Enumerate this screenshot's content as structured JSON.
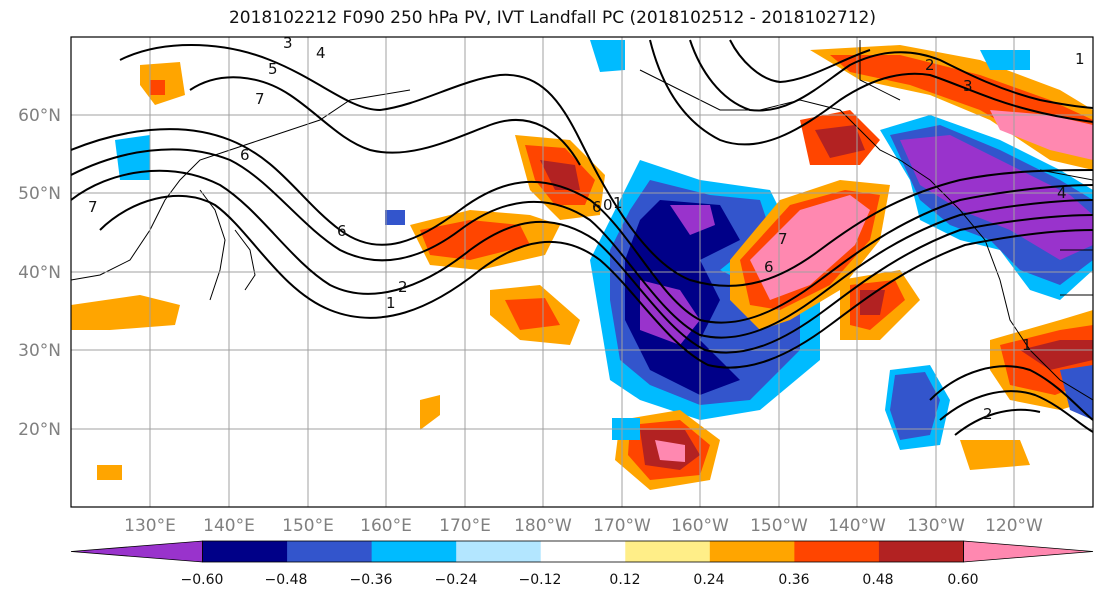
{
  "title": "2018102212 F090 250 hPa PV, IVT Landfall PC (2018102512 - 2018102712)",
  "lon_labels": [
    "130°E",
    "140°E",
    "150°E",
    "160°E",
    "170°E",
    "180°W",
    "170°W",
    "160°W",
    "150°W",
    "140°W",
    "130°W",
    "120°W"
  ],
  "lat_labels": [
    "60°N",
    "50°N",
    "40°N",
    "30°N",
    "20°N"
  ],
  "colorbar": {
    "colors": [
      "#9933cc",
      "#000088",
      "#3355cc",
      "#00bbff",
      "#b3e6ff",
      "#ffffff",
      "#ffee88",
      "#ffa500",
      "#ff4500",
      "#b22222",
      "#ff88b0"
    ],
    "tick_labels": [
      "−0.60",
      "−0.48",
      "−0.36",
      "−0.24",
      "−0.12",
      "0.12",
      "0.24",
      "0.36",
      "0.48",
      "0.60"
    ]
  },
  "contour_labels": [
    "3",
    "4",
    "5",
    "7",
    "6",
    "7",
    "2",
    "1",
    "6",
    "6",
    "0",
    "1",
    "7",
    "6",
    "1",
    "2",
    "3",
    "4",
    "1",
    "2"
  ]
}
